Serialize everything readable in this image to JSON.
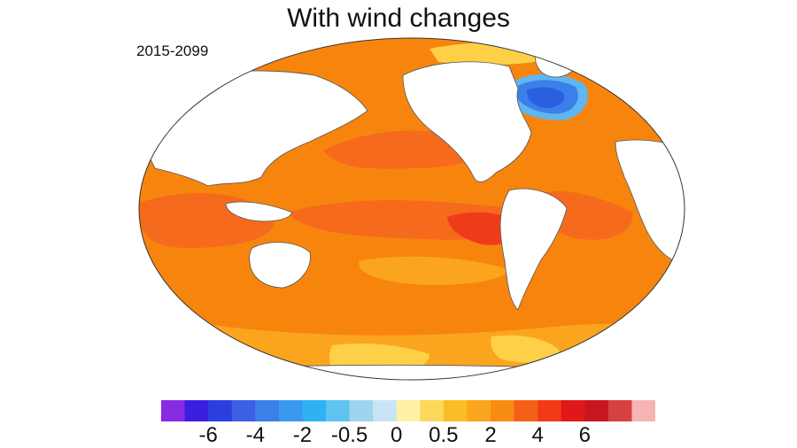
{
  "title": "With wind changes",
  "period": "2015-2099",
  "colorbar": {
    "colors": [
      "#8a2be2",
      "#3a1fe0",
      "#2a3fe0",
      "#3d5fe4",
      "#3b7fe8",
      "#3a98ee",
      "#2fb2f4",
      "#5fc3f2",
      "#9ed4ee",
      "#c9e5f5",
      "#fff2a6",
      "#fdd85a",
      "#fbbd25",
      "#fba51f",
      "#f88c13",
      "#f6601a",
      "#f23b16",
      "#e01818",
      "#c8161e",
      "#d64040",
      "#f7b4b4"
    ],
    "tick_labels": [
      {
        "text": "-6",
        "bin": 2
      },
      {
        "text": "-4",
        "bin": 4
      },
      {
        "text": "-2",
        "bin": 6
      },
      {
        "text": "-0.5",
        "bin": 8
      },
      {
        "text": "0",
        "bin": 10
      },
      {
        "text": "0.5",
        "bin": 12
      },
      {
        "text": "2",
        "bin": 14
      },
      {
        "text": "4",
        "bin": 16
      },
      {
        "text": "6",
        "bin": 18
      }
    ]
  },
  "map_colors": {
    "ocean_base": "#f7850d",
    "warm_band": "#f56a1c",
    "hot_spot": "#ee3c1a",
    "cool_band": "#fba51f",
    "light": "#fdd047",
    "cold_1": "#5fb6f0",
    "cold_2": "#3b7fe8",
    "cold_3": "#2a5fe0",
    "land": "#ffffff",
    "coast": "#555555"
  }
}
